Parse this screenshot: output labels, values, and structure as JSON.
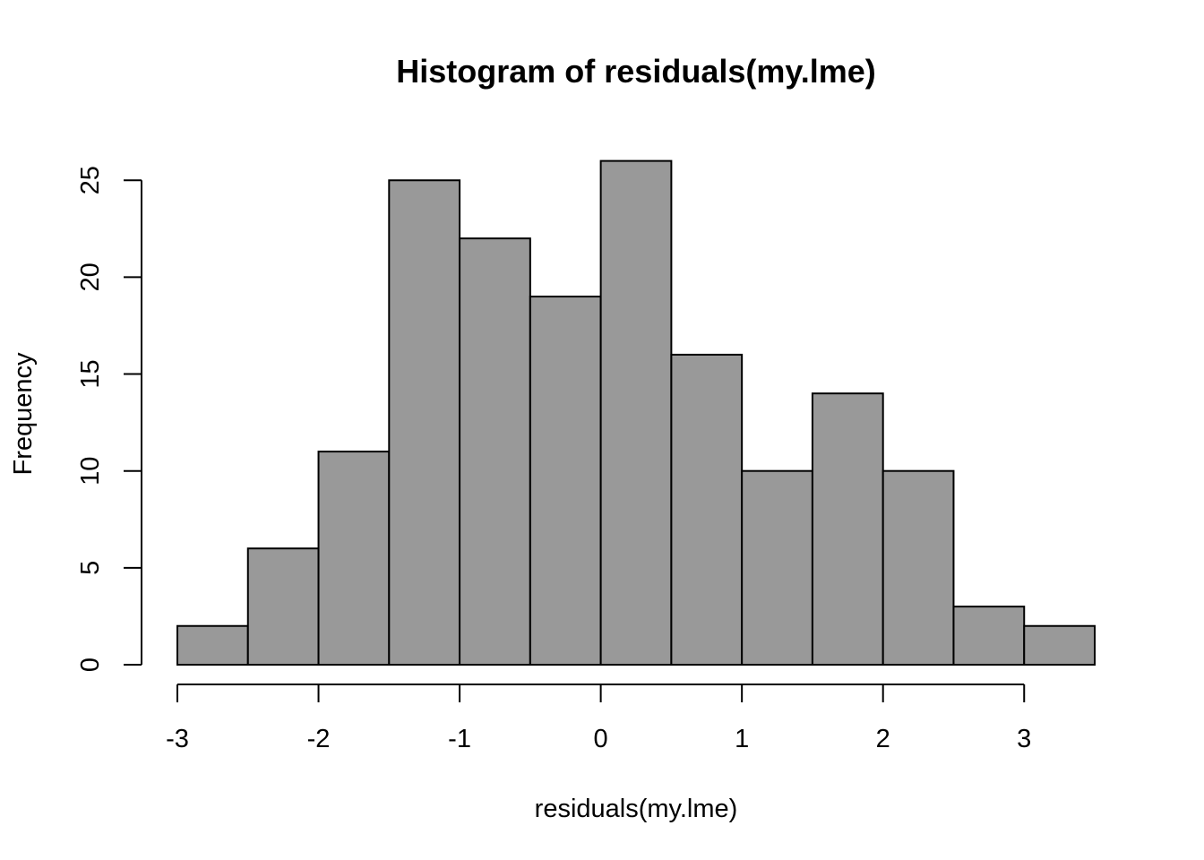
{
  "chart_data": {
    "type": "bar",
    "title": "Histogram of residuals(my.lme)",
    "xlabel": "residuals(my.lme)",
    "ylabel": "Frequency",
    "bins": [
      {
        "from": -3.0,
        "to": -2.5,
        "count": 2
      },
      {
        "from": -2.5,
        "to": -2.0,
        "count": 6
      },
      {
        "from": -2.0,
        "to": -1.5,
        "count": 11
      },
      {
        "from": -1.5,
        "to": -1.0,
        "count": 25
      },
      {
        "from": -1.0,
        "to": -0.5,
        "count": 22
      },
      {
        "from": -0.5,
        "to": 0.0,
        "count": 19
      },
      {
        "from": 0.0,
        "to": 0.5,
        "count": 26
      },
      {
        "from": 0.5,
        "to": 1.0,
        "count": 16
      },
      {
        "from": 1.0,
        "to": 1.5,
        "count": 10
      },
      {
        "from": 1.5,
        "to": 2.0,
        "count": 14
      },
      {
        "from": 2.0,
        "to": 2.5,
        "count": 10
      },
      {
        "from": 2.5,
        "to": 3.0,
        "count": 3
      },
      {
        "from": 3.0,
        "to": 3.5,
        "count": 2
      }
    ],
    "xticks": [
      -3,
      -2,
      -1,
      0,
      1,
      2,
      3
    ],
    "yticks": [
      0,
      5,
      10,
      15,
      20,
      25
    ],
    "xlim": [
      -3,
      3.5
    ],
    "ylim": [
      0,
      26
    ],
    "grid": false,
    "bar_color": "#999999",
    "edge_color": "#000000"
  }
}
